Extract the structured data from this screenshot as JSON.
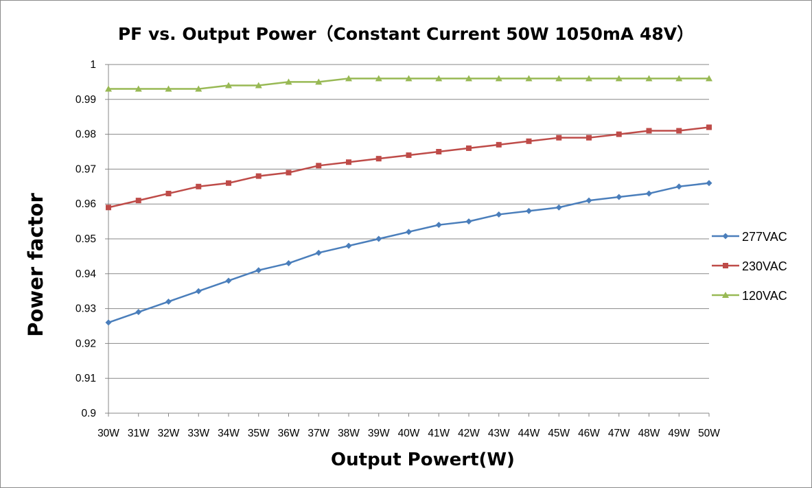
{
  "chart_data": {
    "type": "line",
    "title": "PF vs. Output Power（Constant Current 50W 1050mA 48V）",
    "xlabel": "Output Powert(W)",
    "ylabel": "Power factor",
    "categories": [
      "30W",
      "31W",
      "32W",
      "33W",
      "34W",
      "35W",
      "36W",
      "37W",
      "38W",
      "39W",
      "40W",
      "41W",
      "42W",
      "43W",
      "44W",
      "45W",
      "46W",
      "47W",
      "48W",
      "49W",
      "50W"
    ],
    "ylim": [
      0.9,
      1.0
    ],
    "yticks": [
      "0.9",
      "0.91",
      "0.92",
      "0.93",
      "0.94",
      "0.95",
      "0.96",
      "0.97",
      "0.98",
      "0.99",
      "1"
    ],
    "grid": true,
    "legend_position": "right",
    "series": [
      {
        "name": "277VAC",
        "color": "#4a7ebb",
        "marker": "diamond",
        "values": [
          0.926,
          0.929,
          0.932,
          0.935,
          0.938,
          0.941,
          0.943,
          0.946,
          0.948,
          0.95,
          0.952,
          0.954,
          0.955,
          0.957,
          0.958,
          0.959,
          0.961,
          0.962,
          0.963,
          0.965,
          0.966
        ]
      },
      {
        "name": "230VAC",
        "color": "#be4b48",
        "marker": "square",
        "values": [
          0.959,
          0.961,
          0.963,
          0.965,
          0.966,
          0.968,
          0.969,
          0.971,
          0.972,
          0.973,
          0.974,
          0.975,
          0.976,
          0.977,
          0.978,
          0.979,
          0.979,
          0.98,
          0.981,
          0.981,
          0.982
        ]
      },
      {
        "name": "120VAC",
        "color": "#98b954",
        "marker": "triangle",
        "values": [
          0.993,
          0.993,
          0.993,
          0.993,
          0.994,
          0.994,
          0.995,
          0.995,
          0.996,
          0.996,
          0.996,
          0.996,
          0.996,
          0.996,
          0.996,
          0.996,
          0.996,
          0.996,
          0.996,
          0.996,
          0.996
        ]
      }
    ]
  }
}
